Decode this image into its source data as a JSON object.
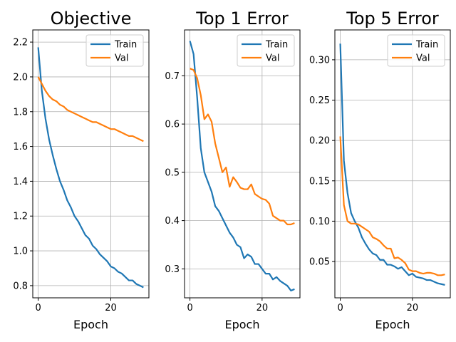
{
  "chart_data": [
    {
      "type": "line",
      "title": "Objective",
      "xlabel": "Epoch",
      "ylabel": "",
      "xlim": [
        -1.5,
        30.5
      ],
      "ylim": [
        0.73,
        2.27
      ],
      "xticks": [
        0,
        20
      ],
      "yticks": [
        0.8,
        1.0,
        1.2,
        1.4,
        1.6,
        1.8,
        2.0,
        2.2
      ],
      "ytick_labels": [
        "0.8",
        "1.0",
        "1.2",
        "1.4",
        "1.6",
        "1.8",
        "2.0",
        "2.2"
      ],
      "grid": true,
      "legend": "top-right",
      "x": [
        0,
        1,
        2,
        3,
        4,
        5,
        6,
        7,
        8,
        9,
        10,
        11,
        12,
        13,
        14,
        15,
        16,
        17,
        18,
        19,
        20,
        21,
        22,
        23,
        24,
        25,
        26,
        27,
        28,
        29
      ],
      "series": [
        {
          "name": "Train",
          "color": "#1f77b4",
          "values": [
            2.17,
            1.92,
            1.76,
            1.64,
            1.55,
            1.47,
            1.4,
            1.35,
            1.29,
            1.25,
            1.2,
            1.17,
            1.13,
            1.09,
            1.07,
            1.03,
            1.01,
            0.98,
            0.96,
            0.94,
            0.91,
            0.9,
            0.88,
            0.87,
            0.85,
            0.83,
            0.83,
            0.81,
            0.8,
            0.79
          ]
        },
        {
          "name": "Val",
          "color": "#ff7f0e",
          "values": [
            2.0,
            1.96,
            1.92,
            1.89,
            1.87,
            1.86,
            1.84,
            1.83,
            1.81,
            1.8,
            1.79,
            1.78,
            1.77,
            1.76,
            1.75,
            1.74,
            1.74,
            1.73,
            1.72,
            1.71,
            1.7,
            1.7,
            1.69,
            1.68,
            1.67,
            1.66,
            1.66,
            1.65,
            1.64,
            1.63
          ]
        }
      ]
    },
    {
      "type": "line",
      "title": "Top 1 Error",
      "xlabel": "Epoch",
      "ylabel": "",
      "xlim": [
        -1.5,
        30.5
      ],
      "ylim": [
        0.24,
        0.795
      ],
      "xticks": [
        0,
        20
      ],
      "yticks": [
        0.3,
        0.4,
        0.5,
        0.6,
        0.7
      ],
      "ytick_labels": [
        "0.3",
        "0.4",
        "0.5",
        "0.6",
        "0.7"
      ],
      "grid": true,
      "legend": "top-right",
      "x": [
        0,
        1,
        2,
        3,
        4,
        5,
        6,
        7,
        8,
        9,
        10,
        11,
        12,
        13,
        14,
        15,
        16,
        17,
        18,
        19,
        20,
        21,
        22,
        23,
        24,
        25,
        26,
        27,
        28,
        29
      ],
      "series": [
        {
          "name": "Train",
          "color": "#1f77b4",
          "values": [
            0.772,
            0.745,
            0.655,
            0.55,
            0.5,
            0.48,
            0.46,
            0.43,
            0.42,
            0.405,
            0.39,
            0.375,
            0.365,
            0.35,
            0.345,
            0.322,
            0.33,
            0.325,
            0.31,
            0.31,
            0.3,
            0.29,
            0.29,
            0.278,
            0.283,
            0.275,
            0.27,
            0.265,
            0.255,
            0.258
          ]
        },
        {
          "name": "Val",
          "color": "#ff7f0e",
          "values": [
            0.715,
            0.712,
            0.695,
            0.66,
            0.61,
            0.62,
            0.605,
            0.56,
            0.53,
            0.5,
            0.51,
            0.47,
            0.49,
            0.48,
            0.468,
            0.465,
            0.465,
            0.475,
            0.455,
            0.45,
            0.445,
            0.443,
            0.435,
            0.41,
            0.405,
            0.4,
            0.4,
            0.392,
            0.392,
            0.395
          ]
        }
      ]
    },
    {
      "type": "line",
      "title": "Top 5 Error",
      "xlabel": "Epoch",
      "ylabel": "",
      "xlim": [
        -1.5,
        30.5
      ],
      "ylim": [
        0.005,
        0.337
      ],
      "xticks": [
        0,
        20
      ],
      "yticks": [
        0.05,
        0.1,
        0.15,
        0.2,
        0.25,
        0.3
      ],
      "ytick_labels": [
        "0.05",
        "0.10",
        "0.15",
        "0.20",
        "0.25",
        "0.30"
      ],
      "grid": true,
      "legend": "top-right",
      "x": [
        0,
        1,
        2,
        3,
        4,
        5,
        6,
        7,
        8,
        9,
        10,
        11,
        12,
        13,
        14,
        15,
        16,
        17,
        18,
        19,
        20,
        21,
        22,
        23,
        24,
        25,
        26,
        27,
        28,
        29
      ],
      "series": [
        {
          "name": "Train",
          "color": "#1f77b4",
          "values": [
            0.32,
            0.175,
            0.135,
            0.11,
            0.1,
            0.092,
            0.08,
            0.072,
            0.065,
            0.06,
            0.058,
            0.052,
            0.052,
            0.046,
            0.046,
            0.044,
            0.041,
            0.043,
            0.038,
            0.033,
            0.035,
            0.031,
            0.03,
            0.029,
            0.027,
            0.027,
            0.025,
            0.023,
            0.022,
            0.021
          ]
        },
        {
          "name": "Val",
          "color": "#ff7f0e",
          "values": [
            0.205,
            0.12,
            0.1,
            0.097,
            0.097,
            0.096,
            0.093,
            0.09,
            0.087,
            0.08,
            0.078,
            0.075,
            0.07,
            0.066,
            0.066,
            0.054,
            0.055,
            0.052,
            0.048,
            0.04,
            0.038,
            0.038,
            0.036,
            0.035,
            0.036,
            0.036,
            0.035,
            0.033,
            0.033,
            0.034
          ]
        }
      ]
    }
  ]
}
